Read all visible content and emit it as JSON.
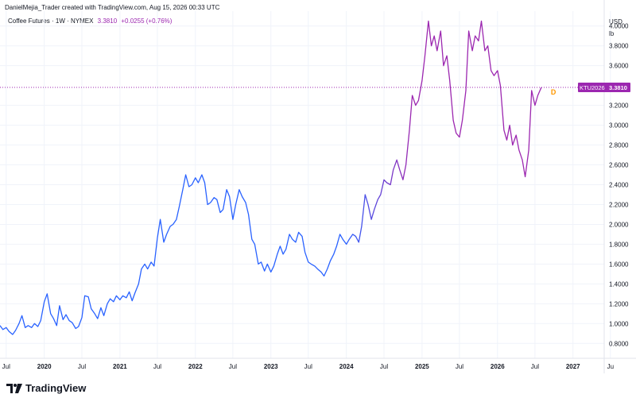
{
  "header": {
    "attribution": "DanielMejia_Trader created with TradingView.com, Aug 15, 2026 00:33 UTC"
  },
  "legend": {
    "title": "Coffee Futures · 1W · NYMEX",
    "value": "3.3810",
    "change": "+0.0255 (+0.76%)"
  },
  "units": {
    "currency": "USD",
    "unit": "lb"
  },
  "price_tag": {
    "symbol": "KTU2026",
    "value": "3.3810"
  },
  "marker": {
    "label": "D",
    "color": "#ff9800"
  },
  "brand": {
    "name": "TradingView",
    "logo": "tradingview-logo-icon"
  },
  "colors": {
    "line_start": "#2962ff",
    "line_end": "#9c27b0",
    "tag_bg": "#9c27b0",
    "grid": "#f0f3fa"
  },
  "chart_data": {
    "type": "line",
    "ylim": [
      0.65,
      4.15
    ],
    "xlim": [
      "2019-06",
      "2027-06"
    ],
    "grid": true,
    "y_ticks": [
      {
        "value": 0.8,
        "label": "0.8000"
      },
      {
        "value": 1.0,
        "label": "1.0000"
      },
      {
        "value": 1.2,
        "label": "1.2000"
      },
      {
        "value": 1.4,
        "label": "1.4000"
      },
      {
        "value": 1.6,
        "label": "1.6000"
      },
      {
        "value": 1.8,
        "label": "1.8000"
      },
      {
        "value": 2.0,
        "label": "2.0000"
      },
      {
        "value": 2.2,
        "label": "2.2000"
      },
      {
        "value": 2.4,
        "label": "2.4000"
      },
      {
        "value": 2.6,
        "label": "2.6000"
      },
      {
        "value": 2.8,
        "label": "2.8000"
      },
      {
        "value": 3.0,
        "label": "3.0000"
      },
      {
        "value": 3.2,
        "label": "3.2000"
      },
      {
        "value": 3.6,
        "label": "3.6000"
      },
      {
        "value": 3.8,
        "label": "3.8000"
      },
      {
        "value": 4.0,
        "label": "4.0000"
      }
    ],
    "x_ticks": [
      {
        "date": "2019-07",
        "label": "Jul",
        "bold": false
      },
      {
        "date": "2020-01",
        "label": "2020",
        "bold": true
      },
      {
        "date": "2020-07",
        "label": "Jul",
        "bold": false
      },
      {
        "date": "2021-01",
        "label": "2021",
        "bold": true
      },
      {
        "date": "2021-07",
        "label": "Jul",
        "bold": false
      },
      {
        "date": "2022-01",
        "label": "2022",
        "bold": true
      },
      {
        "date": "2022-07",
        "label": "Jul",
        "bold": false
      },
      {
        "date": "2023-01",
        "label": "2023",
        "bold": true
      },
      {
        "date": "2023-07",
        "label": "Jul",
        "bold": false
      },
      {
        "date": "2024-01",
        "label": "2024",
        "bold": true
      },
      {
        "date": "2024-07",
        "label": "Jul",
        "bold": false
      },
      {
        "date": "2025-01",
        "label": "2025",
        "bold": true
      },
      {
        "date": "2025-07",
        "label": "Jul",
        "bold": false
      },
      {
        "date": "2026-01",
        "label": "2026",
        "bold": true
      },
      {
        "date": "2026-07",
        "label": "Jul",
        "bold": false
      },
      {
        "date": "2027-01",
        "label": "2027",
        "bold": true
      },
      {
        "date": "2027-07",
        "label": "Ju",
        "bold": false
      }
    ],
    "last_value": 3.381,
    "series": [
      {
        "values": [
          [
            "2019-06-01",
            0.98
          ],
          [
            "2019-06-15",
            0.94
          ],
          [
            "2019-07-01",
            0.96
          ],
          [
            "2019-07-15",
            0.92
          ],
          [
            "2019-08-01",
            0.89
          ],
          [
            "2019-08-15",
            0.93
          ],
          [
            "2019-09-01",
            1.0
          ],
          [
            "2019-09-15",
            1.08
          ],
          [
            "2019-10-01",
            0.96
          ],
          [
            "2019-10-15",
            0.98
          ],
          [
            "2019-11-01",
            0.96
          ],
          [
            "2019-11-15",
            1.0
          ],
          [
            "2019-12-01",
            0.97
          ],
          [
            "2019-12-15",
            1.03
          ],
          [
            "2020-01-01",
            1.22
          ],
          [
            "2020-01-15",
            1.3
          ],
          [
            "2020-02-01",
            1.1
          ],
          [
            "2020-02-15",
            1.05
          ],
          [
            "2020-03-01",
            0.98
          ],
          [
            "2020-03-15",
            1.18
          ],
          [
            "2020-04-01",
            1.04
          ],
          [
            "2020-04-15",
            1.09
          ],
          [
            "2020-05-01",
            1.03
          ],
          [
            "2020-05-15",
            1.01
          ],
          [
            "2020-06-01",
            0.95
          ],
          [
            "2020-06-15",
            0.97
          ],
          [
            "2020-07-01",
            1.06
          ],
          [
            "2020-07-15",
            1.28
          ],
          [
            "2020-08-01",
            1.27
          ],
          [
            "2020-08-15",
            1.15
          ],
          [
            "2020-09-01",
            1.1
          ],
          [
            "2020-09-15",
            1.05
          ],
          [
            "2020-10-01",
            1.16
          ],
          [
            "2020-10-15",
            1.08
          ],
          [
            "2020-11-01",
            1.2
          ],
          [
            "2020-11-15",
            1.25
          ],
          [
            "2020-12-01",
            1.22
          ],
          [
            "2020-12-15",
            1.28
          ],
          [
            "2021-01-01",
            1.24
          ],
          [
            "2021-01-15",
            1.28
          ],
          [
            "2021-02-01",
            1.26
          ],
          [
            "2021-02-15",
            1.32
          ],
          [
            "2021-03-01",
            1.23
          ],
          [
            "2021-03-15",
            1.31
          ],
          [
            "2021-04-01",
            1.4
          ],
          [
            "2021-04-15",
            1.55
          ],
          [
            "2021-05-01",
            1.6
          ],
          [
            "2021-05-15",
            1.55
          ],
          [
            "2021-06-01",
            1.62
          ],
          [
            "2021-06-15",
            1.58
          ],
          [
            "2021-07-01",
            1.86
          ],
          [
            "2021-07-15",
            2.05
          ],
          [
            "2021-08-01",
            1.82
          ],
          [
            "2021-08-15",
            1.9
          ],
          [
            "2021-09-01",
            1.98
          ],
          [
            "2021-09-15",
            2.0
          ],
          [
            "2021-10-01",
            2.05
          ],
          [
            "2021-10-15",
            2.18
          ],
          [
            "2021-11-01",
            2.35
          ],
          [
            "2021-11-15",
            2.5
          ],
          [
            "2021-12-01",
            2.38
          ],
          [
            "2021-12-15",
            2.4
          ],
          [
            "2022-01-01",
            2.47
          ],
          [
            "2022-01-15",
            2.42
          ],
          [
            "2022-02-01",
            2.5
          ],
          [
            "2022-02-15",
            2.42
          ],
          [
            "2022-03-01",
            2.2
          ],
          [
            "2022-03-15",
            2.22
          ],
          [
            "2022-04-01",
            2.27
          ],
          [
            "2022-04-15",
            2.25
          ],
          [
            "2022-05-01",
            2.12
          ],
          [
            "2022-05-15",
            2.15
          ],
          [
            "2022-06-01",
            2.35
          ],
          [
            "2022-06-15",
            2.28
          ],
          [
            "2022-07-01",
            2.05
          ],
          [
            "2022-07-15",
            2.2
          ],
          [
            "2022-08-01",
            2.35
          ],
          [
            "2022-08-15",
            2.28
          ],
          [
            "2022-09-01",
            2.22
          ],
          [
            "2022-09-15",
            2.1
          ],
          [
            "2022-10-01",
            1.85
          ],
          [
            "2022-10-15",
            1.8
          ],
          [
            "2022-11-01",
            1.6
          ],
          [
            "2022-11-15",
            1.62
          ],
          [
            "2022-12-01",
            1.53
          ],
          [
            "2022-12-15",
            1.6
          ],
          [
            "2023-01-01",
            1.52
          ],
          [
            "2023-01-15",
            1.58
          ],
          [
            "2023-02-01",
            1.7
          ],
          [
            "2023-02-15",
            1.78
          ],
          [
            "2023-03-01",
            1.7
          ],
          [
            "2023-03-15",
            1.75
          ],
          [
            "2023-04-01",
            1.9
          ],
          [
            "2023-04-15",
            1.85
          ],
          [
            "2023-05-01",
            1.82
          ],
          [
            "2023-05-15",
            1.92
          ],
          [
            "2023-06-01",
            1.88
          ],
          [
            "2023-06-15",
            1.72
          ],
          [
            "2023-07-01",
            1.62
          ],
          [
            "2023-07-15",
            1.6
          ],
          [
            "2023-08-01",
            1.58
          ],
          [
            "2023-08-15",
            1.55
          ],
          [
            "2023-09-01",
            1.52
          ],
          [
            "2023-09-15",
            1.48
          ],
          [
            "2023-10-01",
            1.55
          ],
          [
            "2023-10-15",
            1.63
          ],
          [
            "2023-11-01",
            1.7
          ],
          [
            "2023-11-15",
            1.78
          ],
          [
            "2023-12-01",
            1.9
          ],
          [
            "2023-12-15",
            1.85
          ],
          [
            "2024-01-01",
            1.8
          ],
          [
            "2024-01-15",
            1.85
          ],
          [
            "2024-02-01",
            1.9
          ],
          [
            "2024-02-15",
            1.88
          ],
          [
            "2024-03-01",
            1.82
          ],
          [
            "2024-03-15",
            1.98
          ],
          [
            "2024-04-01",
            2.3
          ],
          [
            "2024-04-15",
            2.2
          ],
          [
            "2024-05-01",
            2.05
          ],
          [
            "2024-05-15",
            2.15
          ],
          [
            "2024-06-01",
            2.25
          ],
          [
            "2024-06-15",
            2.3
          ],
          [
            "2024-07-01",
            2.45
          ],
          [
            "2024-07-15",
            2.42
          ],
          [
            "2024-08-01",
            2.4
          ],
          [
            "2024-08-15",
            2.55
          ],
          [
            "2024-09-01",
            2.65
          ],
          [
            "2024-09-15",
            2.55
          ],
          [
            "2024-10-01",
            2.45
          ],
          [
            "2024-10-15",
            2.6
          ],
          [
            "2024-11-01",
            2.95
          ],
          [
            "2024-11-15",
            3.3
          ],
          [
            "2024-12-01",
            3.2
          ],
          [
            "2024-12-15",
            3.25
          ],
          [
            "2025-01-01",
            3.45
          ],
          [
            "2025-01-15",
            3.7
          ],
          [
            "2025-02-01",
            4.05
          ],
          [
            "2025-02-15",
            3.8
          ],
          [
            "2025-03-01",
            3.9
          ],
          [
            "2025-03-15",
            3.75
          ],
          [
            "2025-04-01",
            3.95
          ],
          [
            "2025-04-15",
            3.6
          ],
          [
            "2025-05-01",
            3.7
          ],
          [
            "2025-05-15",
            3.45
          ],
          [
            "2025-06-01",
            3.05
          ],
          [
            "2025-06-15",
            2.92
          ],
          [
            "2025-07-01",
            2.88
          ],
          [
            "2025-07-15",
            3.05
          ],
          [
            "2025-08-01",
            3.35
          ],
          [
            "2025-08-15",
            3.95
          ],
          [
            "2025-09-01",
            3.75
          ],
          [
            "2025-09-15",
            3.9
          ],
          [
            "2025-10-01",
            3.85
          ],
          [
            "2025-10-15",
            4.05
          ],
          [
            "2025-11-01",
            3.75
          ],
          [
            "2025-11-15",
            3.8
          ],
          [
            "2025-12-01",
            3.55
          ],
          [
            "2025-12-15",
            3.5
          ],
          [
            "2026-01-01",
            3.55
          ],
          [
            "2026-01-15",
            3.4
          ],
          [
            "2026-02-01",
            2.95
          ],
          [
            "2026-02-15",
            2.85
          ],
          [
            "2026-03-01",
            3.0
          ],
          [
            "2026-03-15",
            2.8
          ],
          [
            "2026-04-01",
            2.9
          ],
          [
            "2026-04-15",
            2.75
          ],
          [
            "2026-05-01",
            2.65
          ],
          [
            "2026-05-15",
            2.48
          ],
          [
            "2026-06-01",
            2.75
          ],
          [
            "2026-06-15",
            3.35
          ],
          [
            "2026-07-01",
            3.2
          ],
          [
            "2026-07-15",
            3.3
          ],
          [
            "2026-08-01",
            3.381
          ]
        ]
      }
    ]
  }
}
